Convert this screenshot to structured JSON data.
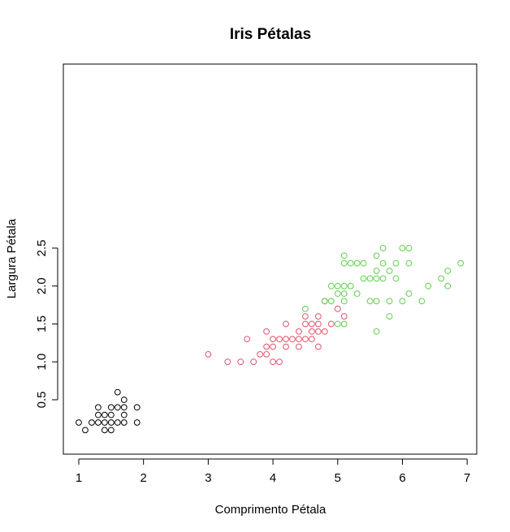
{
  "chart_data": {
    "type": "scatter",
    "title": "Iris Pétalas",
    "xlabel": "Comprimento Pétala",
    "ylabel": "Largura Pétala",
    "xlim": [
      1,
      6.9
    ],
    "ylim": [
      0.1,
      2.5
    ],
    "x_ticks": [
      1,
      2,
      3,
      4,
      5,
      6,
      7
    ],
    "y_ticks": [
      0.5,
      1.0,
      1.5,
      2.0,
      2.5
    ],
    "x_tick_labels": [
      "1",
      "2",
      "3",
      "4",
      "5",
      "6",
      "7"
    ],
    "y_tick_labels": [
      "0.5",
      "1.0",
      "1.5",
      "2.0",
      "2.5"
    ],
    "grid": false,
    "legend": "none",
    "series": [
      {
        "color": "#000000",
        "points": [
          [
            1.0,
            0.2
          ],
          [
            1.1,
            0.1
          ],
          [
            1.2,
            0.2
          ],
          [
            1.3,
            0.2
          ],
          [
            1.3,
            0.3
          ],
          [
            1.3,
            0.4
          ],
          [
            1.4,
            0.1
          ],
          [
            1.4,
            0.2
          ],
          [
            1.4,
            0.3
          ],
          [
            1.5,
            0.1
          ],
          [
            1.5,
            0.2
          ],
          [
            1.5,
            0.3
          ],
          [
            1.5,
            0.4
          ],
          [
            1.6,
            0.2
          ],
          [
            1.6,
            0.4
          ],
          [
            1.6,
            0.6
          ],
          [
            1.7,
            0.2
          ],
          [
            1.7,
            0.3
          ],
          [
            1.7,
            0.4
          ],
          [
            1.7,
            0.5
          ],
          [
            1.9,
            0.2
          ],
          [
            1.9,
            0.4
          ]
        ]
      },
      {
        "color": "#DF536B",
        "points": [
          [
            3.0,
            1.1
          ],
          [
            3.3,
            1.0
          ],
          [
            3.5,
            1.0
          ],
          [
            3.6,
            1.3
          ],
          [
            3.7,
            1.0
          ],
          [
            3.8,
            1.1
          ],
          [
            3.9,
            1.1
          ],
          [
            3.9,
            1.2
          ],
          [
            3.9,
            1.4
          ],
          [
            4.0,
            1.0
          ],
          [
            4.0,
            1.2
          ],
          [
            4.0,
            1.3
          ],
          [
            4.1,
            1.0
          ],
          [
            4.1,
            1.3
          ],
          [
            4.2,
            1.2
          ],
          [
            4.2,
            1.3
          ],
          [
            4.2,
            1.5
          ],
          [
            4.3,
            1.3
          ],
          [
            4.4,
            1.2
          ],
          [
            4.4,
            1.3
          ],
          [
            4.4,
            1.4
          ],
          [
            4.5,
            1.3
          ],
          [
            4.5,
            1.5
          ],
          [
            4.5,
            1.6
          ],
          [
            4.6,
            1.3
          ],
          [
            4.6,
            1.4
          ],
          [
            4.6,
            1.5
          ],
          [
            4.7,
            1.2
          ],
          [
            4.7,
            1.4
          ],
          [
            4.7,
            1.5
          ],
          [
            4.7,
            1.6
          ],
          [
            4.8,
            1.4
          ],
          [
            4.8,
            1.8
          ],
          [
            4.9,
            1.5
          ],
          [
            5.0,
            1.7
          ],
          [
            5.1,
            1.6
          ]
        ]
      },
      {
        "color": "#61D04F",
        "points": [
          [
            4.5,
            1.7
          ],
          [
            4.8,
            1.8
          ],
          [
            4.9,
            1.8
          ],
          [
            4.9,
            2.0
          ],
          [
            5.0,
            1.5
          ],
          [
            5.0,
            1.9
          ],
          [
            5.0,
            2.0
          ],
          [
            5.1,
            1.5
          ],
          [
            5.1,
            1.8
          ],
          [
            5.1,
            1.9
          ],
          [
            5.1,
            2.0
          ],
          [
            5.1,
            2.3
          ],
          [
            5.1,
            2.4
          ],
          [
            5.2,
            2.0
          ],
          [
            5.2,
            2.3
          ],
          [
            5.3,
            1.9
          ],
          [
            5.3,
            2.3
          ],
          [
            5.4,
            2.1
          ],
          [
            5.4,
            2.3
          ],
          [
            5.5,
            1.8
          ],
          [
            5.5,
            2.1
          ],
          [
            5.6,
            1.4
          ],
          [
            5.6,
            1.8
          ],
          [
            5.6,
            2.1
          ],
          [
            5.6,
            2.2
          ],
          [
            5.6,
            2.4
          ],
          [
            5.7,
            2.1
          ],
          [
            5.7,
            2.3
          ],
          [
            5.7,
            2.5
          ],
          [
            5.8,
            1.6
          ],
          [
            5.8,
            1.8
          ],
          [
            5.8,
            2.2
          ],
          [
            5.9,
            2.1
          ],
          [
            5.9,
            2.3
          ],
          [
            6.0,
            1.8
          ],
          [
            6.0,
            2.5
          ],
          [
            6.1,
            1.9
          ],
          [
            6.1,
            2.3
          ],
          [
            6.1,
            2.5
          ],
          [
            6.3,
            1.8
          ],
          [
            6.4,
            2.0
          ],
          [
            6.6,
            2.1
          ],
          [
            6.7,
            2.0
          ],
          [
            6.7,
            2.2
          ],
          [
            6.9,
            2.3
          ]
        ]
      }
    ]
  }
}
